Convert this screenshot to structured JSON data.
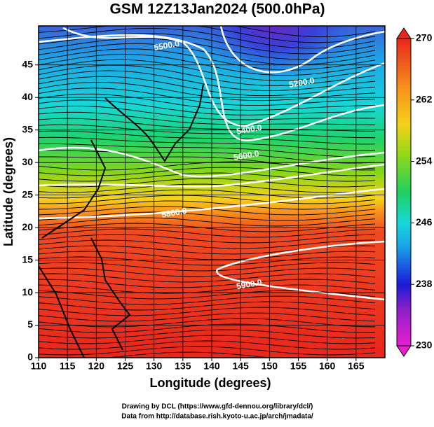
{
  "chart_data": {
    "type": "contour-map",
    "title": "GSM 12Z13Jan2024 (500.0hPa)",
    "x_label": "Longitude (degrees)",
    "y_label": "Latitude  (degrees)",
    "xlim": [
      110,
      170
    ],
    "xticks": [
      110,
      115,
      120,
      125,
      130,
      135,
      140,
      145,
      150,
      155,
      160,
      165
    ],
    "ylim": [
      0,
      51
    ],
    "yticks": [
      0,
      5,
      10,
      15,
      20,
      25,
      30,
      35,
      40,
      45
    ],
    "colorbar": {
      "lim": [
        230,
        270
      ],
      "ticks": [
        230,
        238,
        246,
        254,
        262,
        270
      ]
    },
    "contour_labels": [
      {
        "text": "5500.0",
        "lon": 132.2,
        "lat": 47.9
      },
      {
        "text": "5200.0",
        "lon": 155.6,
        "lat": 42.2
      },
      {
        "text": "5400.0",
        "lon": 146.5,
        "lat": 35
      },
      {
        "text": "5600.0",
        "lon": 146,
        "lat": 31
      },
      {
        "text": "5800.0",
        "lon": 133.5,
        "lat": 22.2
      },
      {
        "text": "5900.0",
        "lon": 146.5,
        "lat": 11.2
      }
    ],
    "credits": [
      "Drawing by DCL (https://www.gfd-dennou.org/library/dcl/)",
      "Data from http://database.rish.kyoto-u.ac.jp/arch/jmadata/"
    ]
  }
}
